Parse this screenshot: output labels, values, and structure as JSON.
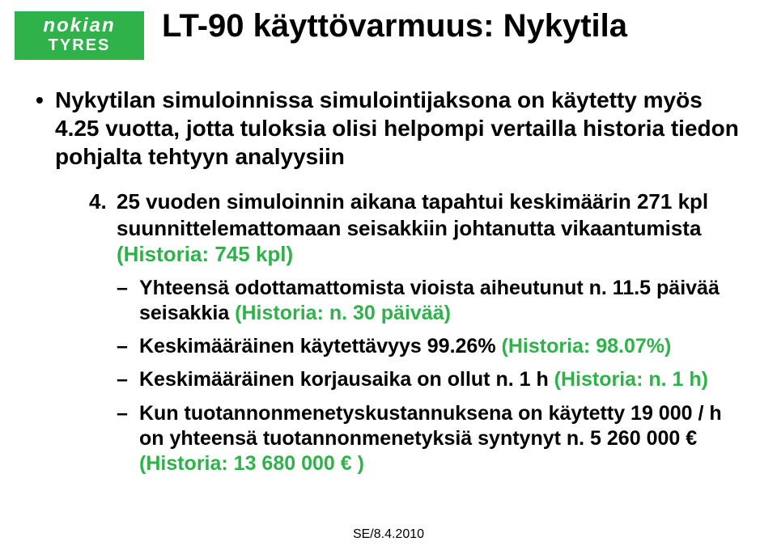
{
  "logo": {
    "line1": "nokian",
    "line2": "TYRES"
  },
  "title": "LT-90 käyttövarmuus: Nykytila",
  "accent_color": "#2fb24a",
  "text_color": "#000000",
  "background_color": "#ffffff",
  "p1": {
    "marker": "•",
    "text": "Nykytilan simuloinnissa simulointijaksona on käytetty myös 4.25 vuotta, jotta tuloksia olisi helpompi vertailla historia tiedon pohjalta tehtyyn analyysiin"
  },
  "p2": {
    "marker": "4.",
    "a": "25 vuoden simuloinnin aikana tapahtui keskimäärin 271 kpl suunnittelemattomaan seisakkiin johtanutta vikaantumista ",
    "b": "(Historia: 745 kpl)"
  },
  "d1": {
    "marker": "–",
    "a": "Yhteensä odottamattomista vioista aiheutunut n. 11.5 päivää seisakkia ",
    "b": "(Historia: n. 30 päivää)"
  },
  "d2": {
    "marker": "–",
    "a": "Keskimääräinen käytettävyys 99.26% ",
    "b": "(Historia: 98.07%)"
  },
  "d3": {
    "marker": "–",
    "a": "Keskimääräinen korjausaika on ollut n. 1 h ",
    "b": "(Historia: n. 1 h)"
  },
  "d4": {
    "marker": "–",
    "a": "Kun tuotannonmenetyskustannuksena on käytetty 19 000 / h on yhteensä tuotannonmenetyksiä syntynyt n. 5 260 000 € ",
    "b": "(Historia: 13 680 000 € )"
  },
  "footer": "SE/8.4.2010"
}
